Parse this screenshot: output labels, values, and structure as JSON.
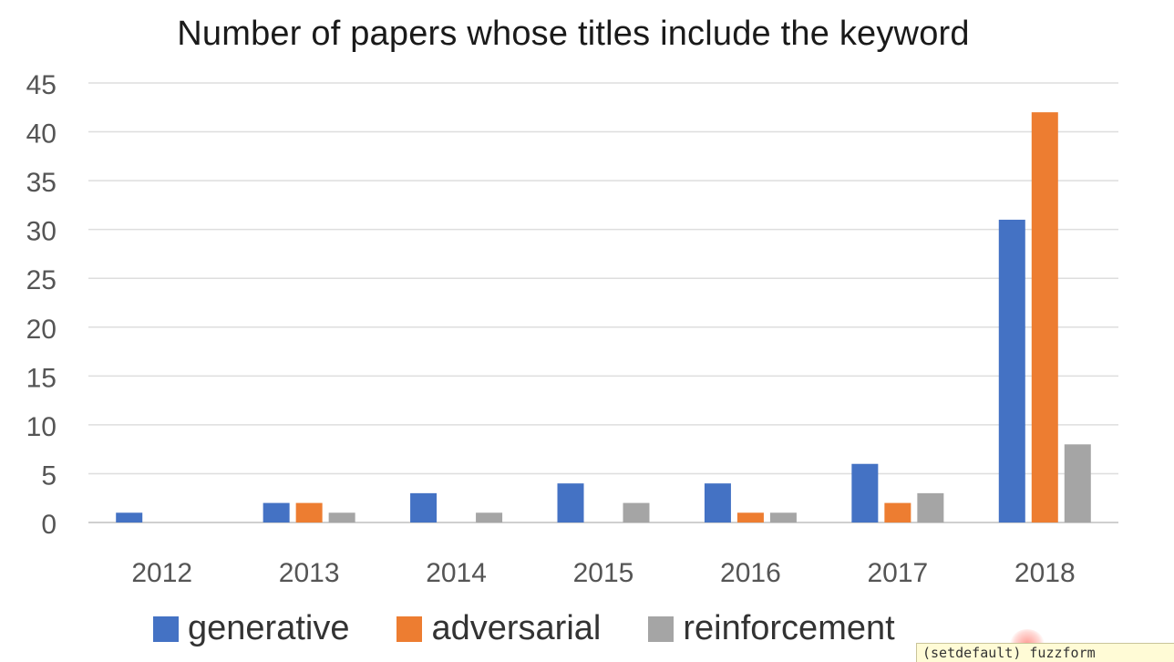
{
  "chart_data": {
    "type": "bar",
    "title": "Number of papers whose titles include the keyword",
    "xlabel": "",
    "ylabel": "",
    "categories": [
      "2012",
      "2013",
      "2014",
      "2015",
      "2016",
      "2017",
      "2018"
    ],
    "series": [
      {
        "name": "generative",
        "color": "#4472c4",
        "values": [
          1,
          2,
          3,
          4,
          4,
          6,
          31
        ]
      },
      {
        "name": "adversarial",
        "color": "#ed7d31",
        "values": [
          0,
          2,
          0,
          0,
          1,
          2,
          42
        ]
      },
      {
        "name": "reinforcement",
        "color": "#a5a5a5",
        "values": [
          0,
          1,
          1,
          2,
          1,
          3,
          8
        ]
      }
    ],
    "ylim": [
      0,
      45
    ],
    "yticks": [
      0,
      5,
      10,
      15,
      20,
      25,
      30,
      35,
      40,
      45
    ],
    "grid": true,
    "legend_position": "bottom"
  },
  "overlay": {
    "tooltip_text": "(setdefault) fuzzform"
  }
}
